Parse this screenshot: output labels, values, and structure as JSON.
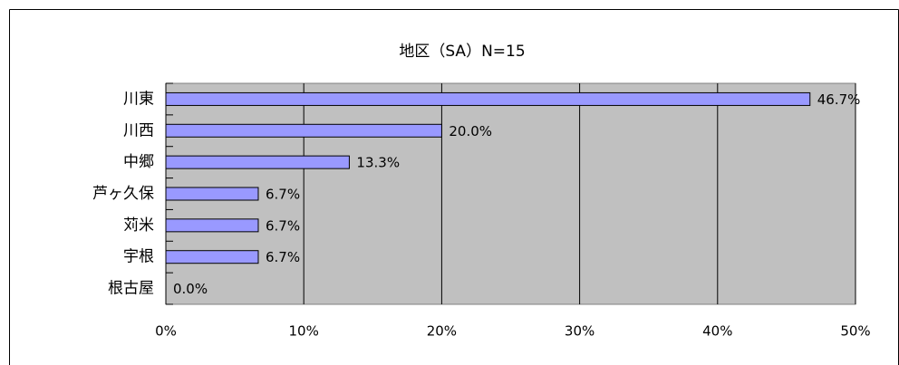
{
  "chart_data": {
    "type": "bar",
    "orientation": "horizontal",
    "title": "地区（SA）N=15",
    "categories": [
      "川東",
      "川西",
      "中郷",
      "芦ヶ久保",
      "苅米",
      "宇根",
      "根古屋"
    ],
    "values": [
      46.7,
      20.0,
      13.3,
      6.7,
      6.7,
      6.7,
      0.0
    ],
    "value_labels": [
      "46.7%",
      "20.0%",
      "13.3%",
      "6.7%",
      "6.7%",
      "6.7%",
      "0.0%"
    ],
    "color": "#9999ff",
    "xlim": [
      0,
      50
    ],
    "xticks": [
      {
        "value": 0,
        "label": "0%"
      },
      {
        "value": 10,
        "label": "10%"
      },
      {
        "value": 20,
        "label": "20%"
      },
      {
        "value": 30,
        "label": "30%"
      },
      {
        "value": 40,
        "label": "40%"
      },
      {
        "value": 50,
        "label": "50%"
      }
    ],
    "grid": true
  }
}
